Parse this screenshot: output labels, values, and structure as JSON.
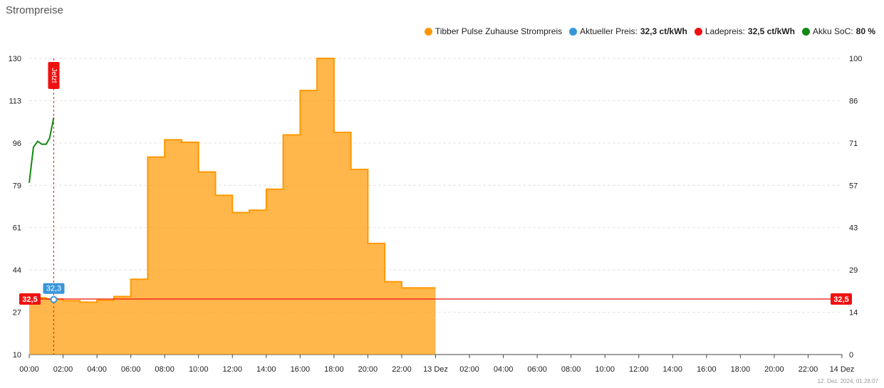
{
  "card": {
    "title": "Strompreise",
    "footer": "12. Dez. 2024, 01:28:07"
  },
  "legend": [
    {
      "label": "Tibber Pulse Zuhause Strompreis",
      "value": "",
      "color": "#ff9800"
    },
    {
      "label": "Aktueller Preis:",
      "value": "32,3 ct/kWh",
      "color": "#3a96d9"
    },
    {
      "label": "Ladepreis:",
      "value": "32,5 ct/kWh",
      "color": "#ee1111"
    },
    {
      "label": "Akku SoC:",
      "value": "80 %",
      "color": "#118811"
    }
  ],
  "chart_data": {
    "type": "area",
    "x_ticks": [
      "00:00",
      "02:00",
      "04:00",
      "06:00",
      "08:00",
      "10:00",
      "12:00",
      "14:00",
      "16:00",
      "18:00",
      "20:00",
      "22:00",
      "13 Dez",
      "02:00",
      "04:00",
      "06:00",
      "08:00",
      "10:00",
      "12:00",
      "14:00",
      "16:00",
      "18:00",
      "20:00",
      "22:00",
      "14 Dez"
    ],
    "x_range_hours": [
      0,
      48
    ],
    "y_left_ticks": [
      "130",
      "113",
      "96",
      "79",
      "61",
      "44",
      "27",
      "10"
    ],
    "y_left_range": [
      10,
      130
    ],
    "y_right_ticks": [
      "100",
      "86",
      "71",
      "57",
      "43",
      "29",
      "14",
      "0"
    ],
    "y_right_range": [
      0,
      100
    ],
    "series": [
      {
        "name": "Tibber Pulse Zuhause Strompreis",
        "style": "step-area",
        "color": "#ff9800",
        "hours": [
          0,
          1,
          2,
          3,
          4,
          5,
          6,
          7,
          8,
          9,
          10,
          11,
          12,
          13,
          14,
          15,
          16,
          17,
          18,
          19,
          20,
          21,
          22,
          23
        ],
        "values": [
          33.0,
          32.5,
          31.8,
          31.2,
          32.0,
          33.5,
          40.5,
          90.0,
          97.0,
          96.0,
          84.0,
          74.5,
          67.5,
          68.5,
          77.0,
          99.0,
          117.0,
          130.0,
          100.0,
          85.0,
          55.0,
          39.5,
          37.0,
          37.0
        ]
      },
      {
        "name": "Akku SoC",
        "style": "line",
        "axis": "right",
        "color": "#118811",
        "hours": [
          0,
          0.25,
          0.5,
          0.75,
          1.0,
          1.2,
          1.45
        ],
        "values": [
          58,
          70,
          72,
          71,
          71,
          73,
          80
        ]
      }
    ],
    "now_marker": {
      "label": "Jetzt",
      "hour": 1.45,
      "color": "#ee1111"
    },
    "current_price": {
      "label": "32,3",
      "value": 32.3,
      "hour": 1.45,
      "color": "#3a96d9"
    },
    "charge_price": {
      "label": "32,5",
      "value": 32.5,
      "color": "#ee1111"
    },
    "grid": true
  }
}
